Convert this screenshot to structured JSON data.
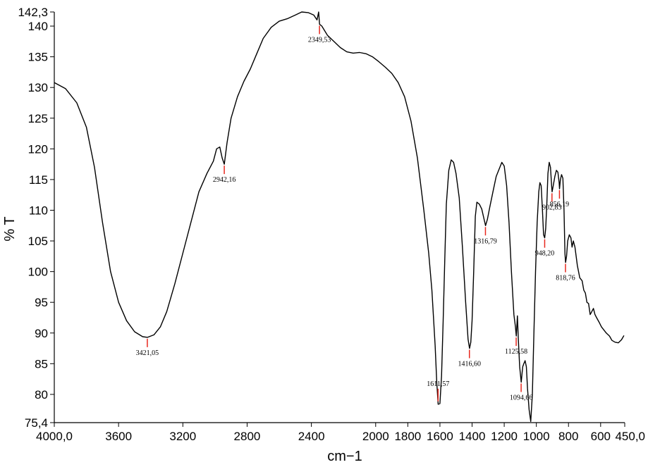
{
  "chart_data": {
    "type": "line",
    "xlabel": "cm−1",
    "ylabel": "% T",
    "xlim": [
      4000.0,
      450.0
    ],
    "ylim": [
      75.4,
      142.3
    ],
    "x_ticks": [
      {
        "value": 4000.0,
        "label": "4000,0"
      },
      {
        "value": 3600,
        "label": "3600"
      },
      {
        "value": 3200,
        "label": "3200"
      },
      {
        "value": 2800,
        "label": "2800"
      },
      {
        "value": 2400,
        "label": "2400"
      },
      {
        "value": 2000,
        "label": "2000"
      },
      {
        "value": 1800,
        "label": "1800"
      },
      {
        "value": 1600,
        "label": "1600"
      },
      {
        "value": 1400,
        "label": "1400"
      },
      {
        "value": 1200,
        "label": "1200"
      },
      {
        "value": 1000,
        "label": "1000"
      },
      {
        "value": 800,
        "label": "800"
      },
      {
        "value": 600,
        "label": "600"
      },
      {
        "value": 450.0,
        "label": "450,0"
      }
    ],
    "y_ticks": [
      {
        "value": 75.4,
        "label": "75,4"
      },
      {
        "value": 80,
        "label": "80"
      },
      {
        "value": 85,
        "label": "85"
      },
      {
        "value": 90,
        "label": "90"
      },
      {
        "value": 95,
        "label": "95"
      },
      {
        "value": 100,
        "label": "100"
      },
      {
        "value": 105,
        "label": "105"
      },
      {
        "value": 110,
        "label": "110"
      },
      {
        "value": 115,
        "label": "115"
      },
      {
        "value": 120,
        "label": "120"
      },
      {
        "value": 125,
        "label": "125"
      },
      {
        "value": 130,
        "label": "130"
      },
      {
        "value": 135,
        "label": "135"
      },
      {
        "value": 140,
        "label": "140"
      },
      {
        "value": 142.3,
        "label": "142,3"
      }
    ],
    "series": [
      {
        "color": "#000000",
        "points": [
          [
            4000,
            130.8
          ],
          [
            3930,
            129.8
          ],
          [
            3860,
            127.5
          ],
          [
            3800,
            123.5
          ],
          [
            3750,
            117.0
          ],
          [
            3700,
            108.0
          ],
          [
            3650,
            100.0
          ],
          [
            3600,
            95.0
          ],
          [
            3550,
            92.0
          ],
          [
            3500,
            90.2
          ],
          [
            3450,
            89.4
          ],
          [
            3420,
            89.3
          ],
          [
            3380,
            89.7
          ],
          [
            3340,
            91.0
          ],
          [
            3300,
            93.5
          ],
          [
            3250,
            98.0
          ],
          [
            3200,
            103.0
          ],
          [
            3150,
            108.0
          ],
          [
            3100,
            113.0
          ],
          [
            3050,
            116.0
          ],
          [
            3010,
            118.0
          ],
          [
            2990,
            120.0
          ],
          [
            2970,
            120.3
          ],
          [
            2955,
            118.5
          ],
          [
            2942,
            117.5
          ],
          [
            2925,
            121.0
          ],
          [
            2900,
            125.0
          ],
          [
            2860,
            128.5
          ],
          [
            2820,
            131.0
          ],
          [
            2780,
            133.0
          ],
          [
            2740,
            135.5
          ],
          [
            2700,
            138.0
          ],
          [
            2650,
            139.8
          ],
          [
            2600,
            140.8
          ],
          [
            2550,
            141.2
          ],
          [
            2500,
            141.8
          ],
          [
            2460,
            142.3
          ],
          [
            2420,
            142.2
          ],
          [
            2385,
            141.8
          ],
          [
            2365,
            141.0
          ],
          [
            2355,
            142.3
          ],
          [
            2349,
            140.3
          ],
          [
            2335,
            140.0
          ],
          [
            2300,
            138.5
          ],
          [
            2260,
            137.5
          ],
          [
            2220,
            136.5
          ],
          [
            2180,
            135.8
          ],
          [
            2140,
            135.6
          ],
          [
            2100,
            135.7
          ],
          [
            2060,
            135.5
          ],
          [
            2020,
            135.0
          ],
          [
            1980,
            134.2
          ],
          [
            1940,
            133.3
          ],
          [
            1900,
            132.3
          ],
          [
            1860,
            130.8
          ],
          [
            1820,
            128.5
          ],
          [
            1780,
            124.5
          ],
          [
            1740,
            118.5
          ],
          [
            1700,
            110.0
          ],
          [
            1670,
            103.0
          ],
          [
            1650,
            97.0
          ],
          [
            1630,
            88.0
          ],
          [
            1620,
            82.0
          ],
          [
            1611,
            78.4
          ],
          [
            1600,
            78.5
          ],
          [
            1590,
            83.0
          ],
          [
            1580,
            92.0
          ],
          [
            1570,
            102.0
          ],
          [
            1560,
            111.0
          ],
          [
            1545,
            116.5
          ],
          [
            1530,
            118.2
          ],
          [
            1515,
            117.8
          ],
          [
            1500,
            116.0
          ],
          [
            1480,
            112.0
          ],
          [
            1460,
            104.0
          ],
          [
            1440,
            95.0
          ],
          [
            1425,
            89.0
          ],
          [
            1416,
            87.5
          ],
          [
            1408,
            88.5
          ],
          [
            1400,
            92.0
          ],
          [
            1390,
            100.0
          ],
          [
            1380,
            109.0
          ],
          [
            1370,
            111.3
          ],
          [
            1355,
            111.0
          ],
          [
            1340,
            110.2
          ],
          [
            1325,
            108.5
          ],
          [
            1316,
            107.5
          ],
          [
            1305,
            108.5
          ],
          [
            1290,
            110.5
          ],
          [
            1270,
            113.0
          ],
          [
            1250,
            115.5
          ],
          [
            1230,
            116.8
          ],
          [
            1215,
            117.8
          ],
          [
            1200,
            117.2
          ],
          [
            1185,
            114.0
          ],
          [
            1170,
            108.0
          ],
          [
            1155,
            100.0
          ],
          [
            1140,
            93.0
          ],
          [
            1130,
            91.0
          ],
          [
            1125,
            89.5
          ],
          [
            1118,
            92.8
          ],
          [
            1112,
            89.0
          ],
          [
            1104,
            84.5
          ],
          [
            1094,
            82.0
          ],
          [
            1085,
            84.5
          ],
          [
            1078,
            85.0
          ],
          [
            1070,
            85.5
          ],
          [
            1062,
            84.5
          ],
          [
            1055,
            81.0
          ],
          [
            1045,
            77.5
          ],
          [
            1035,
            75.6
          ],
          [
            1025,
            80.0
          ],
          [
            1015,
            90.0
          ],
          [
            1005,
            100.0
          ],
          [
            995,
            108.0
          ],
          [
            985,
            113.0
          ],
          [
            978,
            114.5
          ],
          [
            970,
            114.0
          ],
          [
            962,
            110.0
          ],
          [
            955,
            106.0
          ],
          [
            948,
            105.5
          ],
          [
            942,
            107.0
          ],
          [
            935,
            111.0
          ],
          [
            928,
            116.0
          ],
          [
            920,
            117.8
          ],
          [
            912,
            117.0
          ],
          [
            905,
            114.0
          ],
          [
            902,
            113.0
          ],
          [
            895,
            114.0
          ],
          [
            885,
            115.5
          ],
          [
            875,
            116.5
          ],
          [
            866,
            116.2
          ],
          [
            858,
            114.5
          ],
          [
            856,
            113.5
          ],
          [
            850,
            115.0
          ],
          [
            843,
            115.8
          ],
          [
            835,
            115.2
          ],
          [
            828,
            110.0
          ],
          [
            822,
            103.0
          ],
          [
            818,
            101.5
          ],
          [
            812,
            102.5
          ],
          [
            805,
            105.0
          ],
          [
            795,
            106.0
          ],
          [
            785,
            105.5
          ],
          [
            778,
            104.0
          ],
          [
            770,
            105.0
          ],
          [
            760,
            104.0
          ],
          [
            745,
            101.0
          ],
          [
            730,
            99.0
          ],
          [
            715,
            98.5
          ],
          [
            705,
            97.0
          ],
          [
            695,
            96.5
          ],
          [
            685,
            95.0
          ],
          [
            675,
            94.8
          ],
          [
            665,
            93.0
          ],
          [
            655,
            93.5
          ],
          [
            645,
            94.0
          ],
          [
            635,
            93.0
          ],
          [
            625,
            92.5
          ],
          [
            610,
            91.8
          ],
          [
            595,
            91.0
          ],
          [
            580,
            90.5
          ],
          [
            565,
            90.0
          ],
          [
            545,
            89.5
          ],
          [
            530,
            88.8
          ],
          [
            510,
            88.5
          ],
          [
            490,
            88.4
          ],
          [
            470,
            88.9
          ],
          [
            455,
            89.6
          ]
        ]
      }
    ],
    "annotations": [
      {
        "x": 3421.05,
        "y": 89.3,
        "label": "3421,05",
        "pos": "below"
      },
      {
        "x": 2942.16,
        "y": 117.5,
        "label": "2942,16",
        "pos": "below"
      },
      {
        "x": 2349.53,
        "y": 140.3,
        "label": "2349,53",
        "pos": "below"
      },
      {
        "x": 1611.57,
        "y": 78.4,
        "label": "1611,57",
        "pos": "above"
      },
      {
        "x": 1416.6,
        "y": 87.5,
        "label": "1416,60",
        "pos": "below"
      },
      {
        "x": 1316.79,
        "y": 107.5,
        "label": "1316,79",
        "pos": "below"
      },
      {
        "x": 1125.58,
        "y": 89.5,
        "label": "1125,58",
        "pos": "below"
      },
      {
        "x": 1094.66,
        "y": 82.0,
        "label": "1094,66",
        "pos": "below"
      },
      {
        "x": 948.2,
        "y": 105.5,
        "label": "948,20",
        "pos": "below"
      },
      {
        "x": 902.83,
        "y": 113.0,
        "label": "902,83",
        "pos": "below"
      },
      {
        "x": 856.19,
        "y": 113.5,
        "label": "856,19",
        "pos": "below"
      },
      {
        "x": 818.76,
        "y": 101.5,
        "label": "818,76",
        "pos": "below"
      }
    ],
    "grid": false,
    "legend": "none"
  }
}
